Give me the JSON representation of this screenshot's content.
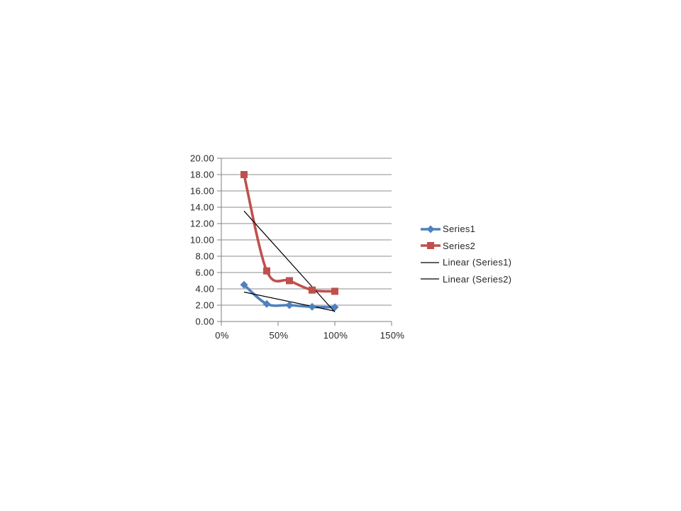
{
  "page": {
    "background": "#ffffff"
  },
  "chart_data": {
    "type": "line",
    "title": "",
    "xlabel": "",
    "ylabel": "",
    "xlim": [
      0,
      150
    ],
    "ylim": [
      0,
      20
    ],
    "grid": true,
    "x_ticks": {
      "values": [
        0,
        50,
        100,
        150
      ],
      "labels": [
        "0%",
        "50%",
        "100%",
        "150%"
      ]
    },
    "y_ticks": {
      "values": [
        0,
        2,
        4,
        6,
        8,
        10,
        12,
        14,
        16,
        18,
        20
      ],
      "labels": [
        "0.00",
        "2.00",
        "4.00",
        "6.00",
        "8.00",
        "10.00",
        "12.00",
        "14.00",
        "16.00",
        "18.00",
        "20.00"
      ]
    },
    "x": [
      20,
      40,
      60,
      80,
      100
    ],
    "series": [
      {
        "name": "Series1",
        "values": [
          4.5,
          2.15,
          2.0,
          1.8,
          1.75
        ],
        "color": "#4F81BD",
        "marker": "diamond",
        "smooth": true
      },
      {
        "name": "Series2",
        "values": [
          18.0,
          6.2,
          5.0,
          3.85,
          3.7
        ],
        "color": "#C0504D",
        "marker": "square",
        "smooth": true
      }
    ],
    "trendlines": [
      {
        "name": "Linear (Series1)",
        "x": [
          20,
          100
        ],
        "y": [
          3.61,
          1.27
        ],
        "color": "#000000"
      },
      {
        "name": "Linear (Series2)",
        "x": [
          20,
          100
        ],
        "y": [
          13.54,
          1.16
        ],
        "color": "#000000"
      }
    ],
    "legend": {
      "position": "right",
      "entries": [
        {
          "label": "Series1",
          "swatch": "line-diamond"
        },
        {
          "label": "Series2",
          "swatch": "line-square"
        },
        {
          "label": "Linear (Series1)",
          "swatch": "line"
        },
        {
          "label": "Linear (Series2)",
          "swatch": "line"
        }
      ]
    },
    "style": {
      "gridline_color": "#8E8E8E",
      "axis_color": "#7F7F7F",
      "text_color": "#262626"
    }
  }
}
